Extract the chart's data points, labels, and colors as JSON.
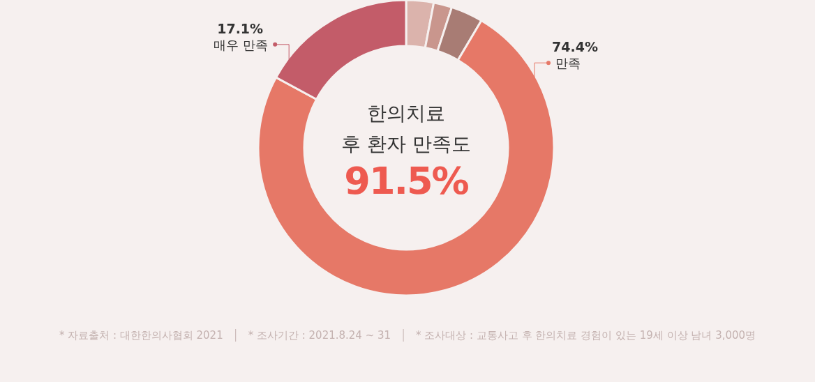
{
  "chart_data": {
    "type": "donut",
    "title": "한의치료 후 환자 만족도",
    "subtitle": "91.5%",
    "categories": [
      null,
      null,
      null,
      "만족",
      "매우 만족"
    ],
    "values": [
      3.0,
      2.0,
      3.5,
      74.4,
      17.1
    ],
    "colors": [
      "#dbb3ac",
      "#c9968d",
      "#a87c74",
      "#e67867",
      "#c35c69"
    ],
    "value_labels": [
      null,
      null,
      null,
      "74.4%",
      "17.1%"
    ],
    "annotations": [
      "* 자료출처 : 대한한의사협회 2021",
      "* 조사기간 : 2021.8.24 ~ 31",
      "* 조사대상 : 교통사고 후 한의치료 경험이 있는 19세 이상 남녀 3,000명"
    ]
  }
}
